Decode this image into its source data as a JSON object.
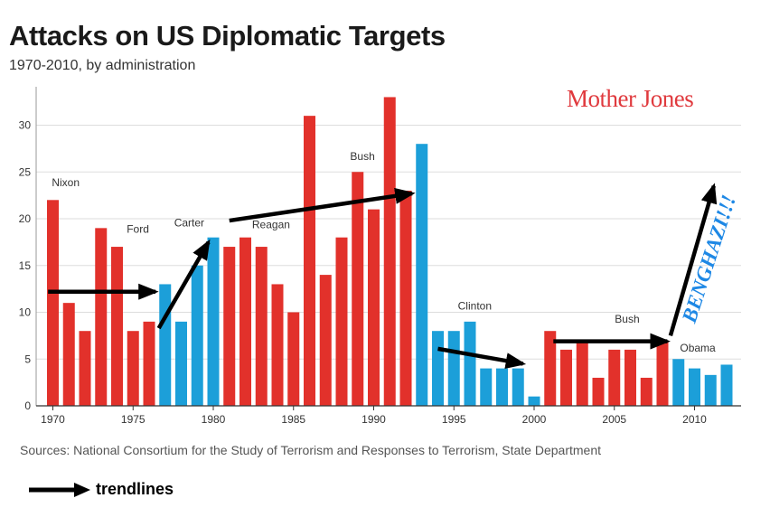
{
  "title": "Attacks on US Diplomatic Targets",
  "subtitle": "1970-2010, by administration",
  "brand": "Mother Jones",
  "sources": "Sources: National Consortium for the Study of Terrorism and Responses to Terrorism, State Department",
  "legend": {
    "label": "trendlines"
  },
  "colors": {
    "republican": "#e2312b",
    "democrat": "#1c9fd9",
    "grid": "#dddddd",
    "arrow": "#000000",
    "callout": "#1e88e5"
  },
  "chart_data": {
    "type": "bar",
    "title": "Attacks on US Diplomatic Targets",
    "xlabel": "",
    "ylabel": "",
    "ylim": [
      0,
      34
    ],
    "grid": true,
    "x_ticks": [
      1970,
      1975,
      1980,
      1985,
      1990,
      1995,
      2000,
      2005,
      2010
    ],
    "y_ticks": [
      0,
      5,
      10,
      15,
      20,
      25,
      30
    ],
    "bars": [
      {
        "year": 1970,
        "value": 22,
        "party": "R"
      },
      {
        "year": 1971,
        "value": 11,
        "party": "R"
      },
      {
        "year": 1972,
        "value": 8,
        "party": "R"
      },
      {
        "year": 1973,
        "value": 19,
        "party": "R"
      },
      {
        "year": 1974,
        "value": 17,
        "party": "R"
      },
      {
        "year": 1975,
        "value": 8,
        "party": "R"
      },
      {
        "year": 1976,
        "value": 9,
        "party": "R"
      },
      {
        "year": 1977,
        "value": 13,
        "party": "D"
      },
      {
        "year": 1978,
        "value": 9,
        "party": "D"
      },
      {
        "year": 1979,
        "value": 15,
        "party": "D"
      },
      {
        "year": 1980,
        "value": 18,
        "party": "D"
      },
      {
        "year": 1981,
        "value": 17,
        "party": "R"
      },
      {
        "year": 1982,
        "value": 18,
        "party": "R"
      },
      {
        "year": 1983,
        "value": 17,
        "party": "R"
      },
      {
        "year": 1984,
        "value": 13,
        "party": "R"
      },
      {
        "year": 1985,
        "value": 10,
        "party": "R"
      },
      {
        "year": 1986,
        "value": 31,
        "party": "R"
      },
      {
        "year": 1987,
        "value": 14,
        "party": "R"
      },
      {
        "year": 1988,
        "value": 18,
        "party": "R"
      },
      {
        "year": 1989,
        "value": 25,
        "party": "R"
      },
      {
        "year": 1990,
        "value": 21,
        "party": "R"
      },
      {
        "year": 1991,
        "value": 33,
        "party": "R"
      },
      {
        "year": 1992,
        "value": 23,
        "party": "R"
      },
      {
        "year": 1993,
        "value": 28,
        "party": "D"
      },
      {
        "year": 1994,
        "value": 8,
        "party": "D"
      },
      {
        "year": 1995,
        "value": 8,
        "party": "D"
      },
      {
        "year": 1996,
        "value": 9,
        "party": "D"
      },
      {
        "year": 1997,
        "value": 4,
        "party": "D"
      },
      {
        "year": 1998,
        "value": 4,
        "party": "D"
      },
      {
        "year": 1999,
        "value": 4,
        "party": "D"
      },
      {
        "year": 2000,
        "value": 1,
        "party": "D"
      },
      {
        "year": 2001,
        "value": 8,
        "party": "R"
      },
      {
        "year": 2002,
        "value": 6,
        "party": "R"
      },
      {
        "year": 2003,
        "value": 7,
        "party": "R"
      },
      {
        "year": 2004,
        "value": 3,
        "party": "R"
      },
      {
        "year": 2005,
        "value": 6,
        "party": "R"
      },
      {
        "year": 2006,
        "value": 6,
        "party": "R"
      },
      {
        "year": 2007,
        "value": 3,
        "party": "R"
      },
      {
        "year": 2008,
        "value": 7,
        "party": "R"
      },
      {
        "year": 2009,
        "value": 5,
        "party": "D"
      },
      {
        "year": 2010,
        "value": 4,
        "party": "D"
      },
      {
        "year": 2011,
        "value": 3.3,
        "party": "D"
      },
      {
        "year": 2012,
        "value": 4.4,
        "party": "D"
      }
    ],
    "annotations": [
      {
        "label": "Nixon",
        "year": 1970.8,
        "value": 23.5
      },
      {
        "label": "Ford",
        "year": 1975.3,
        "value": 18.5
      },
      {
        "label": "Carter",
        "year": 1978.5,
        "value": 19.2
      },
      {
        "label": "Reagan",
        "year": 1983.6,
        "value": 19.0
      },
      {
        "label": "Bush",
        "year": 1989.3,
        "value": 26.3
      },
      {
        "label": "Clinton",
        "year": 1996.3,
        "value": 10.3
      },
      {
        "label": "Bush",
        "year": 2005.8,
        "value": 8.9
      },
      {
        "label": "Obama",
        "year": 2010.2,
        "value": 5.8
      }
    ],
    "trendlines": [
      {
        "from": [
          1969.7,
          12.2
        ],
        "to": [
          1976.4,
          12.2
        ]
      },
      {
        "from": [
          1976.6,
          8.3
        ],
        "to": [
          1979.7,
          17.5
        ]
      },
      {
        "from": [
          1981.0,
          19.8
        ],
        "to": [
          1992.4,
          22.7
        ]
      },
      {
        "from": [
          1994.0,
          6.1
        ],
        "to": [
          1999.3,
          4.5
        ]
      },
      {
        "from": [
          2001.2,
          6.9
        ],
        "to": [
          2008.3,
          6.9
        ]
      },
      {
        "from": [
          2008.5,
          7.5
        ],
        "to": [
          2011.2,
          23.5
        ]
      }
    ],
    "callout": {
      "label": "BENGHAZI!!!",
      "year": 2011.3,
      "value": 15.5
    }
  }
}
